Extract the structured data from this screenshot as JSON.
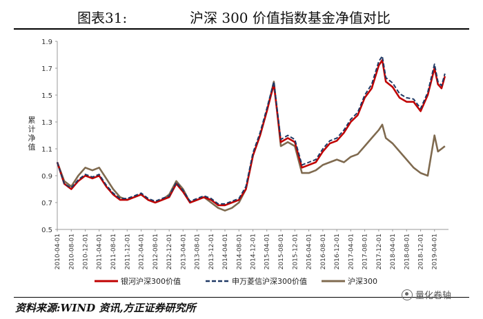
{
  "header": {
    "figure_label": "图表31:",
    "figure_title": "沪深 300 价值指数基金净值对比"
  },
  "footer": {
    "source": "资料来源:WIND 资讯,方正证券研究所",
    "watermark": "量化卷轴"
  },
  "colors": {
    "yinhe": "#c00000",
    "shenwan": "#1f3864",
    "hs300": "#7f6a4f"
  },
  "chart_data": {
    "type": "line",
    "title": "沪深 300 价值指数基金净值对比",
    "ylabel": "累计净值",
    "ylim": [
      0.5,
      1.9
    ],
    "yticks": [
      "0.5",
      "0.7",
      "0.9",
      "1.1",
      "1.3",
      "1.5",
      "1.7",
      "1.9"
    ],
    "xlim": [
      "2010-04-01",
      "2019-08-01"
    ],
    "xticks": [
      "2010-04-01",
      "2010-08-01",
      "2010-12-01",
      "2011-04-01",
      "2011-08-01",
      "2011-12-01",
      "2012-04-01",
      "2012-08-01",
      "2012-12-01",
      "2013-04-01",
      "2013-08-01",
      "2013-12-01",
      "2014-04-01",
      "2014-08-01",
      "2014-12-01",
      "2015-04-01",
      "2015-08-01",
      "2015-12-01",
      "2016-04-01",
      "2016-08-01",
      "2016-12-01",
      "2017-04-01",
      "2017-08-01",
      "2017-12-01",
      "2018-04-01",
      "2018-08-01",
      "2018-12-01",
      "2019-04-01"
    ],
    "grid": false,
    "legend_position": "bottom",
    "x": [
      "2010-04-01",
      "2010-06-01",
      "2010-08-01",
      "2010-10-01",
      "2010-12-01",
      "2011-02-01",
      "2011-04-01",
      "2011-06-01",
      "2011-08-01",
      "2011-10-01",
      "2011-12-01",
      "2012-02-01",
      "2012-04-01",
      "2012-06-01",
      "2012-08-01",
      "2012-10-01",
      "2012-12-01",
      "2013-02-01",
      "2013-04-01",
      "2013-06-01",
      "2013-08-01",
      "2013-10-01",
      "2013-12-01",
      "2014-02-01",
      "2014-04-01",
      "2014-06-01",
      "2014-08-01",
      "2014-10-01",
      "2014-12-01",
      "2015-02-01",
      "2015-04-01",
      "2015-06-01",
      "2015-08-01",
      "2015-10-01",
      "2015-12-01",
      "2016-02-01",
      "2016-04-01",
      "2016-06-01",
      "2016-08-01",
      "2016-10-01",
      "2016-12-01",
      "2017-02-01",
      "2017-04-01",
      "2017-06-01",
      "2017-08-01",
      "2017-10-01",
      "2017-12-01",
      "2018-01-01",
      "2018-02-01",
      "2018-04-01",
      "2018-06-01",
      "2018-08-01",
      "2018-10-01",
      "2018-12-01",
      "2019-02-01",
      "2019-04-01",
      "2019-05-01",
      "2019-06-01",
      "2019-07-01"
    ],
    "series": [
      {
        "name": "银河沪深300价值",
        "color_key": "yinhe",
        "values": [
          1.0,
          0.84,
          0.8,
          0.86,
          0.9,
          0.88,
          0.9,
          0.82,
          0.76,
          0.72,
          0.72,
          0.74,
          0.76,
          0.72,
          0.7,
          0.72,
          0.74,
          0.84,
          0.78,
          0.7,
          0.72,
          0.74,
          0.72,
          0.68,
          0.68,
          0.7,
          0.72,
          0.8,
          1.05,
          1.2,
          1.38,
          1.58,
          1.15,
          1.18,
          1.15,
          0.96,
          0.98,
          1.0,
          1.08,
          1.14,
          1.16,
          1.22,
          1.3,
          1.35,
          1.48,
          1.55,
          1.72,
          1.76,
          1.6,
          1.56,
          1.48,
          1.45,
          1.45,
          1.38,
          1.5,
          1.7,
          1.58,
          1.55,
          1.64
        ]
      },
      {
        "name": "申万菱信沪深300价值",
        "color_key": "shenwan",
        "values": [
          1.0,
          0.84,
          0.81,
          0.87,
          0.91,
          0.89,
          0.91,
          0.83,
          0.77,
          0.73,
          0.73,
          0.75,
          0.77,
          0.73,
          0.71,
          0.73,
          0.75,
          0.85,
          0.79,
          0.71,
          0.73,
          0.75,
          0.73,
          0.69,
          0.69,
          0.71,
          0.73,
          0.82,
          1.07,
          1.22,
          1.4,
          1.6,
          1.17,
          1.2,
          1.17,
          0.98,
          1.0,
          1.02,
          1.1,
          1.16,
          1.18,
          1.24,
          1.32,
          1.37,
          1.5,
          1.58,
          1.75,
          1.79,
          1.63,
          1.59,
          1.51,
          1.48,
          1.47,
          1.4,
          1.52,
          1.73,
          1.6,
          1.57,
          1.66
        ]
      },
      {
        "name": "沪深300",
        "color_key": "hs300",
        "values": [
          1.0,
          0.86,
          0.82,
          0.9,
          0.96,
          0.94,
          0.96,
          0.88,
          0.8,
          0.74,
          0.72,
          0.74,
          0.76,
          0.72,
          0.7,
          0.72,
          0.76,
          0.86,
          0.8,
          0.7,
          0.72,
          0.74,
          0.7,
          0.66,
          0.64,
          0.66,
          0.7,
          0.8,
          1.05,
          1.2,
          1.38,
          1.6,
          1.12,
          1.15,
          1.12,
          0.92,
          0.92,
          0.94,
          0.98,
          1.0,
          1.02,
          1.0,
          1.04,
          1.06,
          1.12,
          1.18,
          1.24,
          1.28,
          1.18,
          1.14,
          1.08,
          1.02,
          0.96,
          0.92,
          0.9,
          1.2,
          1.08,
          1.1,
          1.12
        ]
      }
    ]
  }
}
